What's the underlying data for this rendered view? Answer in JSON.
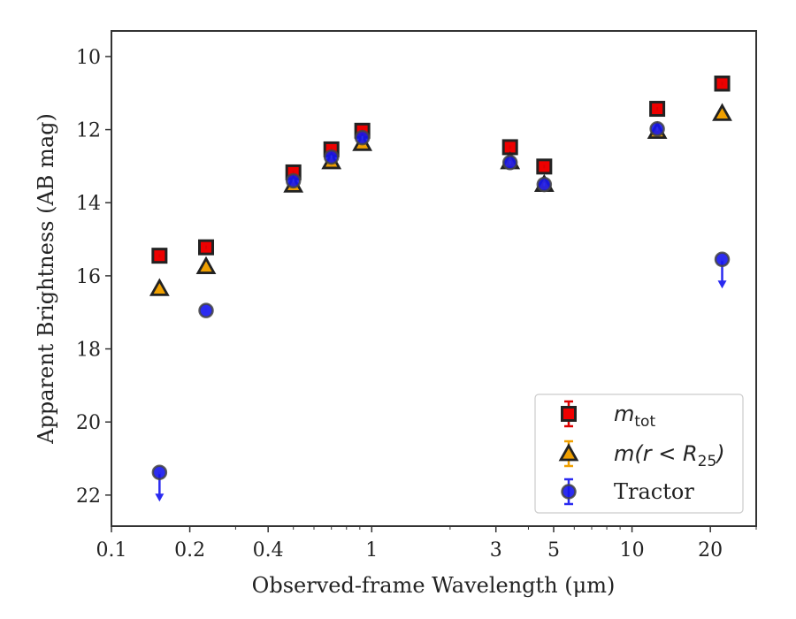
{
  "chart_data": {
    "type": "scatter",
    "xlabel": "Observed-frame Wavelength (μm)",
    "ylabel": "Apparent Brightness (AB mag)",
    "xscale": "log",
    "xlim": [
      0.1,
      30
    ],
    "ylim": [
      22.85,
      9.3
    ],
    "y_inverted": true,
    "grid": false,
    "legend_position": "lower-right",
    "xticks": [
      {
        "value": 0.1,
        "label": "0.1"
      },
      {
        "value": 0.2,
        "label": "0.2"
      },
      {
        "value": 0.4,
        "label": "0.4"
      },
      {
        "value": 1,
        "label": "1"
      },
      {
        "value": 3,
        "label": "3"
      },
      {
        "value": 5,
        "label": "5"
      },
      {
        "value": 10,
        "label": "10"
      },
      {
        "value": 20,
        "label": "20"
      }
    ],
    "yticks": [
      {
        "value": 10,
        "label": "10"
      },
      {
        "value": 12,
        "label": "12"
      },
      {
        "value": 14,
        "label": "14"
      },
      {
        "value": 16,
        "label": "16"
      },
      {
        "value": 18,
        "label": "18"
      },
      {
        "value": 20,
        "label": "20"
      },
      {
        "value": 22,
        "label": "22"
      }
    ],
    "series": [
      {
        "name": "m_tot",
        "marker": "square",
        "color": "#ee0000",
        "edge": "#222222",
        "errcolor": "#dd0000",
        "points": [
          {
            "x": 0.153,
            "y": 15.45
          },
          {
            "x": 0.231,
            "y": 15.22
          },
          {
            "x": 0.5,
            "y": 13.17
          },
          {
            "x": 0.7,
            "y": 12.54
          },
          {
            "x": 0.92,
            "y": 12.03
          },
          {
            "x": 3.4,
            "y": 12.48
          },
          {
            "x": 4.6,
            "y": 13.01
          },
          {
            "x": 12.5,
            "y": 11.43
          },
          {
            "x": 22.2,
            "y": 10.74
          }
        ]
      },
      {
        "name": "m(r < R25)",
        "marker": "triangle",
        "color": "#f0a000",
        "edge": "#222222",
        "errcolor": "#f0a000",
        "points": [
          {
            "x": 0.153,
            "y": 16.35
          },
          {
            "x": 0.231,
            "y": 15.75
          },
          {
            "x": 0.5,
            "y": 13.52
          },
          {
            "x": 0.7,
            "y": 12.88
          },
          {
            "x": 0.92,
            "y": 12.38
          },
          {
            "x": 3.4,
            "y": 12.88
          },
          {
            "x": 4.6,
            "y": 13.5
          },
          {
            "x": 12.5,
            "y": 12.05
          },
          {
            "x": 22.2,
            "y": 11.56
          }
        ]
      },
      {
        "name": "Tractor",
        "marker": "circle",
        "color": "#1515ee",
        "edge": "#444444",
        "errcolor": "#2a2af0",
        "points": [
          {
            "x": 0.153,
            "y": 21.38,
            "upper_limit": true
          },
          {
            "x": 0.231,
            "y": 16.95
          },
          {
            "x": 0.5,
            "y": 13.4
          },
          {
            "x": 0.7,
            "y": 12.75
          },
          {
            "x": 0.92,
            "y": 12.22
          },
          {
            "x": 3.4,
            "y": 12.9
          },
          {
            "x": 4.6,
            "y": 13.5
          },
          {
            "x": 12.5,
            "y": 11.98
          },
          {
            "x": 22.2,
            "y": 15.55,
            "upper_limit": true
          }
        ]
      }
    ],
    "legend": [
      {
        "series": 0,
        "base": "m",
        "sub": "tot",
        "rest": ""
      },
      {
        "series": 1,
        "base": "m(r < R",
        "sub": "25",
        "rest": ")"
      },
      {
        "series": 2,
        "text": "Tractor"
      }
    ]
  }
}
